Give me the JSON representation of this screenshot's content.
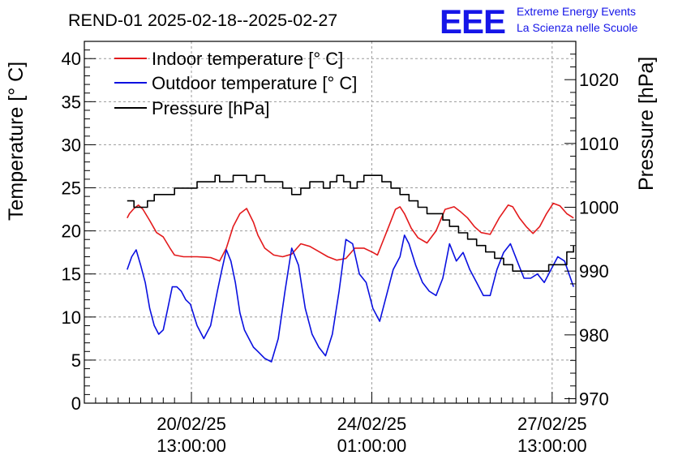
{
  "chart_data": {
    "type": "line",
    "title": "REND-01 2025-02-18--2025-02-27",
    "ylabel": "Temperature [° C]",
    "y2label": "Pressure [hPa]",
    "ylim": [
      0,
      42
    ],
    "y2lim": [
      969.3,
      1026
    ],
    "yticks": [
      0,
      5,
      10,
      15,
      20,
      25,
      30,
      35,
      40
    ],
    "y2ticks": [
      970,
      980,
      990,
      1000,
      1010,
      1020
    ],
    "xlim": [
      0,
      10.9
    ],
    "xticks": [
      {
        "pos": 2.375,
        "line1": "20/02/25",
        "line2": "13:00:00"
      },
      {
        "pos": 6.375,
        "line1": "24/02/25",
        "line2": "01:00:00"
      },
      {
        "pos": 10.375,
        "line1": "27/02/25",
        "line2": "13:00:00"
      }
    ],
    "grid": true,
    "legend_position": "top-left",
    "logo": {
      "letters": "EEE",
      "line1": "Extreme Energy Events",
      "line2": "La Scienza nelle Scuole"
    },
    "colors": {
      "indoor": "#e31a1c",
      "outdoor": "#0a10e0",
      "pressure": "#000000",
      "logo": "#1515e8"
    },
    "series": [
      {
        "name": "Indoor temperature [° C]",
        "axis": "left",
        "color": "#e31a1c",
        "x": [
          0.95,
          1.0,
          1.1,
          1.2,
          1.3,
          1.45,
          1.6,
          1.75,
          1.9,
          2.0,
          2.2,
          2.5,
          2.8,
          3.0,
          3.15,
          3.3,
          3.45,
          3.6,
          3.75,
          3.85,
          4.0,
          4.2,
          4.4,
          4.6,
          4.8,
          5.0,
          5.2,
          5.4,
          5.6,
          5.8,
          6.0,
          6.2,
          6.4,
          6.5,
          6.6,
          6.75,
          6.9,
          7.0,
          7.1,
          7.25,
          7.4,
          7.6,
          7.8,
          8.0,
          8.2,
          8.35,
          8.5,
          8.65,
          8.8,
          9.0,
          9.2,
          9.4,
          9.5,
          9.65,
          9.8,
          9.95,
          10.1,
          10.25,
          10.4,
          10.55,
          10.7,
          10.85
        ],
        "y": [
          21.5,
          22.0,
          22.6,
          23.0,
          22.5,
          21.2,
          19.8,
          19.3,
          18.0,
          17.2,
          17.0,
          17.0,
          16.9,
          16.5,
          18.0,
          20.5,
          22.0,
          22.6,
          21.0,
          19.5,
          18.0,
          17.2,
          17.0,
          17.3,
          18.5,
          18.2,
          17.6,
          17.0,
          16.6,
          16.8,
          18.0,
          18.0,
          17.5,
          17.2,
          18.5,
          20.5,
          22.5,
          22.8,
          22.0,
          20.3,
          19.2,
          18.6,
          20.0,
          22.5,
          22.8,
          22.2,
          21.5,
          20.5,
          19.8,
          19.6,
          21.5,
          23.0,
          22.8,
          21.5,
          20.5,
          19.7,
          20.5,
          22.0,
          23.2,
          22.9,
          22.0,
          21.5
        ]
      },
      {
        "name": "Outdoor temperature [° C]",
        "axis": "left",
        "color": "#0a10e0",
        "x": [
          0.95,
          1.05,
          1.15,
          1.25,
          1.35,
          1.45,
          1.55,
          1.65,
          1.75,
          1.85,
          1.95,
          2.05,
          2.15,
          2.25,
          2.35,
          2.5,
          2.65,
          2.8,
          2.95,
          3.05,
          3.15,
          3.25,
          3.35,
          3.45,
          3.55,
          3.65,
          3.75,
          3.85,
          4.0,
          4.15,
          4.3,
          4.45,
          4.6,
          4.75,
          4.9,
          5.05,
          5.2,
          5.35,
          5.5,
          5.65,
          5.8,
          5.95,
          6.1,
          6.25,
          6.4,
          6.55,
          6.7,
          6.85,
          7.0,
          7.1,
          7.2,
          7.35,
          7.5,
          7.65,
          7.8,
          7.95,
          8.1,
          8.25,
          8.4,
          8.55,
          8.7,
          8.85,
          9.0,
          9.15,
          9.3,
          9.45,
          9.6,
          9.75,
          9.9,
          10.05,
          10.2,
          10.35,
          10.5,
          10.65,
          10.85
        ],
        "y": [
          15.5,
          17.0,
          17.8,
          16.0,
          14.0,
          11.0,
          9.0,
          8.0,
          8.5,
          11.0,
          13.5,
          13.5,
          13.0,
          12.0,
          11.5,
          9.0,
          7.5,
          9.0,
          13.0,
          15.5,
          17.8,
          16.5,
          14.0,
          10.5,
          8.5,
          7.5,
          6.5,
          6.0,
          5.2,
          4.8,
          7.5,
          13.0,
          18.0,
          16.0,
          11.0,
          8.0,
          6.5,
          5.5,
          8.0,
          13.0,
          19.0,
          18.5,
          15.0,
          14.0,
          11.0,
          9.5,
          12.5,
          15.5,
          17.0,
          19.5,
          18.5,
          16.0,
          14.0,
          13.0,
          12.5,
          14.5,
          18.5,
          16.5,
          17.5,
          15.5,
          14.0,
          12.5,
          12.5,
          15.5,
          17.5,
          18.5,
          16.5,
          14.5,
          14.5,
          15.0,
          14.0,
          15.5,
          17.0,
          16.5,
          13.5
        ]
      },
      {
        "name": "Pressure [hPa]",
        "axis": "right",
        "color": "#000000",
        "x": [
          0.95,
          1.1,
          1.25,
          1.4,
          1.55,
          1.75,
          2.0,
          2.25,
          2.5,
          2.75,
          2.9,
          3.0,
          3.15,
          3.3,
          3.45,
          3.6,
          3.8,
          4.0,
          4.2,
          4.4,
          4.6,
          4.8,
          5.0,
          5.15,
          5.3,
          5.45,
          5.6,
          5.75,
          5.9,
          6.05,
          6.2,
          6.4,
          6.6,
          6.8,
          7.0,
          7.2,
          7.4,
          7.6,
          7.8,
          7.95,
          8.1,
          8.3,
          8.5,
          8.7,
          8.9,
          9.1,
          9.3,
          9.5,
          9.7,
          9.9,
          10.1,
          10.3,
          10.5,
          10.7,
          10.85
        ],
        "y": [
          1001,
          1000,
          1000,
          1001,
          1002,
          1002,
          1003,
          1003,
          1004,
          1004,
          1005,
          1004,
          1004,
          1005,
          1005,
          1004,
          1005,
          1004,
          1004,
          1003,
          1002,
          1003,
          1004,
          1004,
          1003,
          1004,
          1005,
          1004,
          1003,
          1004,
          1005,
          1005,
          1004,
          1003,
          1002,
          1001,
          1000,
          999,
          999,
          998,
          997,
          996,
          995,
          994,
          993,
          992,
          991,
          990,
          990,
          990,
          990,
          991,
          991,
          993,
          994
        ]
      }
    ]
  }
}
